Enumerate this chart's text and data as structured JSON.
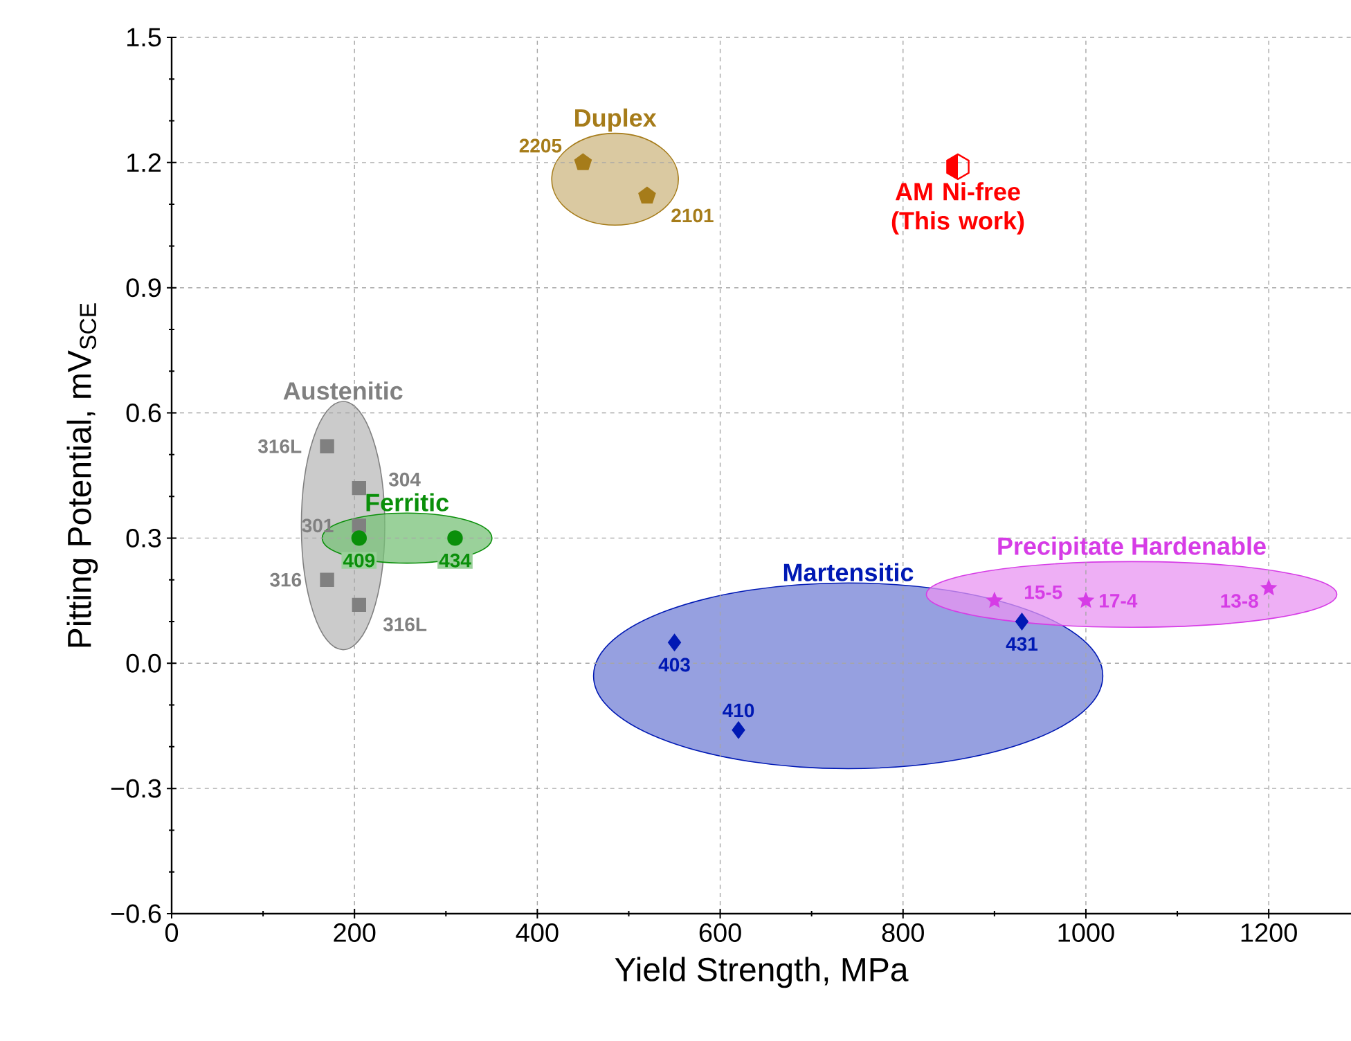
{
  "chart_data": {
    "type": "scatter",
    "xlabel": "Yield Strength, MPa",
    "ylabel": "Pitting Potential, mV$_{SCE}$",
    "xlim": [
      0,
      1290
    ],
    "ylim": [
      -0.6,
      1.5
    ],
    "xticks": [
      0,
      200,
      400,
      600,
      800,
      1000,
      1200
    ],
    "yticks": [
      {
        "value": -0.6,
        "label": "−0.6"
      },
      {
        "value": -0.3,
        "label": "−0.3"
      },
      {
        "value": 0,
        "label": "0.0"
      },
      0.3,
      0.6,
      0.9,
      1.2,
      1.5
    ],
    "grid": true,
    "series": [
      {
        "name": "Austenitic",
        "color": "#808080",
        "marker": "square",
        "x": [
          170,
          205,
          205,
          170,
          205
        ],
        "values": [
          0.52,
          0.42,
          0.33,
          0.2,
          0.14
        ]
      },
      {
        "name": "Ferritic",
        "color": "#0a8f0a",
        "marker": "circle",
        "x": [
          205,
          310
        ],
        "values": [
          0.3,
          0.3
        ]
      },
      {
        "name": "Martensitic",
        "color": "#0019b4",
        "marker": "diamond",
        "x": [
          550,
          620,
          930
        ],
        "values": [
          0.05,
          -0.16,
          0.1
        ]
      },
      {
        "name": "Precipitate Hardenable",
        "color": "#d63ce6",
        "marker": "star",
        "x": [
          900,
          1000,
          1200
        ],
        "values": [
          0.15,
          0.15,
          0.18
        ]
      },
      {
        "name": "Duplex",
        "color": "#a67c1a",
        "x": [
          450,
          520
        ],
        "values": [
          1.2,
          1.12
        ]
      },
      {
        "name": "AM Ni-free (This work)",
        "color": "#ff0000",
        "x": [
          860
        ],
        "values": [
          1.19
        ]
      }
    ],
    "annotations": [
      {
        "text": "316L",
        "x": 170,
        "y": 0.52
      },
      {
        "text": "304",
        "x": 205,
        "y": 0.42
      },
      {
        "text": "301",
        "x": 205,
        "y": 0.33
      },
      {
        "text": "316",
        "x": 170,
        "y": 0.2
      },
      {
        "text": "316L",
        "x": 205,
        "y": 0.14
      },
      {
        "text": "409",
        "x": 205,
        "y": 0.3
      },
      {
        "text": "434",
        "x": 310,
        "y": 0.3
      },
      {
        "text": "403",
        "x": 550,
        "y": 0.05
      },
      {
        "text": "410",
        "x": 620,
        "y": -0.16
      },
      {
        "text": "431",
        "x": 930,
        "y": 0.1
      },
      {
        "text": "15-5",
        "x": 900,
        "y": 0.15
      },
      {
        "text": "17-4",
        "x": 1000,
        "y": 0.15
      },
      {
        "text": "13-8",
        "x": 1200,
        "y": 0.18
      },
      {
        "text": "2205",
        "x": 450,
        "y": 1.2
      },
      {
        "text": "2101",
        "x": 520,
        "y": 1.12
      }
    ]
  }
}
